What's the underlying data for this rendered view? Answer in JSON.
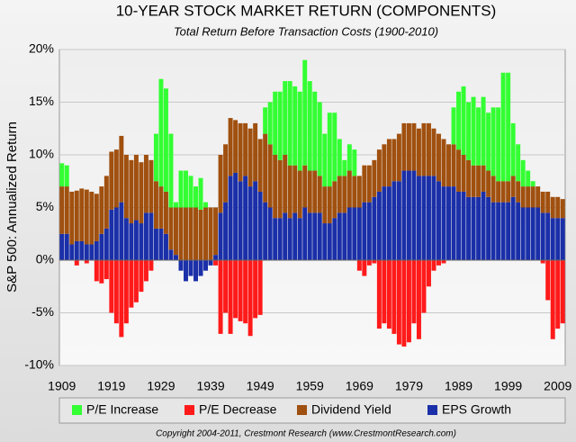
{
  "chart_data": {
    "type": "stacked_bar",
    "title": "10-YEAR STOCK MARKET RETURN (COMPONENTS)",
    "subtitle": "Total Return Before Transaction Costs (1900-2010)",
    "y_label": "S&P 500: Annualized Return",
    "footer": "Copyright 2004-2011, Crestmont Research (www.CrestmontResearch.com)",
    "categories": [
      "1909",
      null,
      null,
      null,
      null,
      null,
      null,
      null,
      null,
      null,
      "1919",
      null,
      null,
      null,
      null,
      null,
      null,
      null,
      null,
      null,
      "1929",
      null,
      null,
      null,
      null,
      null,
      null,
      null,
      null,
      null,
      "1939",
      null,
      null,
      null,
      null,
      null,
      null,
      null,
      null,
      null,
      "1949",
      null,
      null,
      null,
      null,
      null,
      null,
      null,
      null,
      null,
      "1959",
      null,
      null,
      null,
      null,
      null,
      null,
      null,
      null,
      null,
      "1969",
      null,
      null,
      null,
      null,
      null,
      null,
      null,
      null,
      null,
      "1979",
      null,
      null,
      null,
      null,
      null,
      null,
      null,
      null,
      null,
      "1989",
      null,
      null,
      null,
      null,
      null,
      null,
      null,
      null,
      null,
      "1999",
      null,
      null,
      null,
      null,
      null,
      null,
      null,
      null,
      null,
      "2009",
      null
    ],
    "ylim": [
      -10,
      20
    ],
    "yticks": [
      {
        "value": -10,
        "label": "-10%"
      },
      {
        "value": -5,
        "label": "-5%"
      },
      {
        "value": 0,
        "label": "0%"
      },
      {
        "value": 5,
        "label": "5%"
      },
      {
        "value": 10,
        "label": "10%"
      },
      {
        "value": 15,
        "label": "15%"
      },
      {
        "value": 20,
        "label": "20%"
      }
    ],
    "grid": true,
    "legend": "bottom",
    "series": [
      {
        "name": "P/E Increase",
        "color": "#33ff33",
        "role": "increase",
        "values": [
          2.2,
          2.0,
          0,
          0,
          0,
          0,
          0,
          0,
          0,
          0,
          0,
          0,
          0,
          0,
          0,
          0,
          0,
          0,
          0,
          4.5,
          10.2,
          9.8,
          7.0,
          0.5,
          3.5,
          3.5,
          3.0,
          2.0,
          3.0,
          0.5,
          0,
          0,
          0,
          0,
          0,
          0,
          0,
          0,
          0,
          0,
          0,
          2.5,
          4.0,
          6.0,
          6.5,
          7.0,
          8.0,
          7.5,
          7.5,
          10.0,
          8.5,
          7.5,
          7.0,
          5.0,
          7.0,
          6.5,
          3.5,
          1.5,
          2.5,
          2.5,
          0,
          0,
          0,
          0,
          0,
          0,
          0,
          0,
          0,
          0,
          0,
          0,
          0,
          0,
          0,
          0,
          0,
          0,
          0,
          3.5,
          5.5,
          6.5,
          5.5,
          6.5,
          5.5,
          6.5,
          5.5,
          6.5,
          7.0,
          10.3,
          10.3,
          5.0,
          3.5,
          2.5,
          1.5,
          0.5,
          0,
          0,
          0,
          0,
          0,
          0
        ]
      },
      {
        "name": "P/E Decrease",
        "color": "#ff1a1a",
        "role": "decrease",
        "values": [
          0,
          0,
          0,
          -0.5,
          0,
          -0.3,
          0,
          -2.0,
          -2.2,
          -1.8,
          -5.0,
          -6.0,
          -7.3,
          -6.0,
          -4.5,
          -4.0,
          -3.0,
          -2.0,
          -1.0,
          0,
          0,
          0,
          0,
          0,
          0,
          0,
          0,
          0,
          0,
          0,
          0,
          -0.5,
          -7.0,
          -5.0,
          -7.0,
          -5.5,
          -5.8,
          -6.0,
          -7.2,
          -5.5,
          -5.2,
          0,
          0,
          0,
          0,
          0,
          0,
          0,
          0,
          0,
          0,
          0,
          0,
          0,
          0,
          0,
          0,
          0,
          0,
          0,
          -1.0,
          -1.5,
          -0.5,
          -0.3,
          -6.5,
          -6.0,
          -6.5,
          -7.0,
          -8.0,
          -8.2,
          -7.8,
          -6.0,
          -7.5,
          -5.0,
          -2.5,
          -1.0,
          -0.5,
          -0.3,
          0,
          0,
          0,
          0,
          0,
          0,
          0,
          0,
          0,
          0,
          0,
          0,
          0,
          0,
          0,
          0,
          0,
          0,
          0,
          -0.3,
          -3.8,
          -7.5,
          -6.5,
          -6.0
        ]
      },
      {
        "name": "Dividend Yield",
        "color": "#a0500f",
        "role": "dividend",
        "values": [
          4.5,
          4.5,
          5.0,
          4.8,
          5.0,
          5.2,
          5.0,
          4.5,
          4.5,
          5.0,
          5.5,
          5.5,
          6.3,
          6.0,
          6.0,
          6.2,
          5.8,
          5.5,
          5.0,
          4.5,
          4.0,
          4.0,
          4.0,
          4.5,
          5.0,
          5.0,
          5.0,
          5.0,
          4.8,
          5.0,
          5.0,
          4.5,
          5.5,
          5.5,
          5.5,
          5.0,
          5.5,
          5.0,
          5.5,
          5.5,
          5.0,
          6.5,
          6.0,
          6.0,
          5.5,
          5.5,
          5.0,
          4.5,
          4.5,
          4.0,
          4.0,
          4.0,
          3.5,
          3.5,
          3.5,
          3.5,
          3.5,
          3.5,
          3.5,
          3.0,
          3.0,
          3.5,
          3.5,
          3.5,
          4.0,
          4.0,
          4.5,
          4.0,
          4.5,
          4.5,
          4.5,
          4.5,
          4.5,
          5.0,
          5.0,
          4.5,
          4.5,
          4.5,
          4.0,
          4.0,
          4.0,
          3.5,
          3.5,
          3.0,
          3.0,
          2.5,
          2.5,
          2.5,
          2.0,
          2.0,
          2.0,
          2.0,
          2.0,
          2.0,
          2.0,
          2.0,
          2.0,
          2.0,
          2.0,
          2.0,
          2.0,
          1.8
        ]
      },
      {
        "name": "EPS Growth",
        "color": "#1a2fa8",
        "role": "eps",
        "values": [
          2.5,
          2.5,
          1.5,
          1.8,
          1.8,
          1.5,
          1.5,
          1.8,
          2.5,
          3.0,
          4.8,
          5.0,
          5.5,
          4.0,
          3.5,
          3.8,
          3.5,
          4.5,
          4.5,
          3.0,
          3.0,
          2.5,
          1.0,
          0.5,
          -1.0,
          -2.0,
          -1.5,
          -2.0,
          -1.5,
          -1.0,
          -0.5,
          0.5,
          4.5,
          5.5,
          8.0,
          8.3,
          7.5,
          8.0,
          7.0,
          7.5,
          6.5,
          5.5,
          5.0,
          4.0,
          4.0,
          4.5,
          4.0,
          4.5,
          4.0,
          5.0,
          4.5,
          4.5,
          4.5,
          3.5,
          3.5,
          4.0,
          4.5,
          4.5,
          5.0,
          5.0,
          5.0,
          5.5,
          5.5,
          6.0,
          6.5,
          7.0,
          7.0,
          7.5,
          7.5,
          8.5,
          8.5,
          8.5,
          8.0,
          8.0,
          8.0,
          8.0,
          7.5,
          7.0,
          7.0,
          7.0,
          6.5,
          6.5,
          6.0,
          6.0,
          6.0,
          6.5,
          6.0,
          5.5,
          5.5,
          5.5,
          5.5,
          6.0,
          5.5,
          5.0,
          5.0,
          5.0,
          5.0,
          4.5,
          4.5,
          4.0,
          4.0,
          4.0
        ]
      }
    ]
  }
}
